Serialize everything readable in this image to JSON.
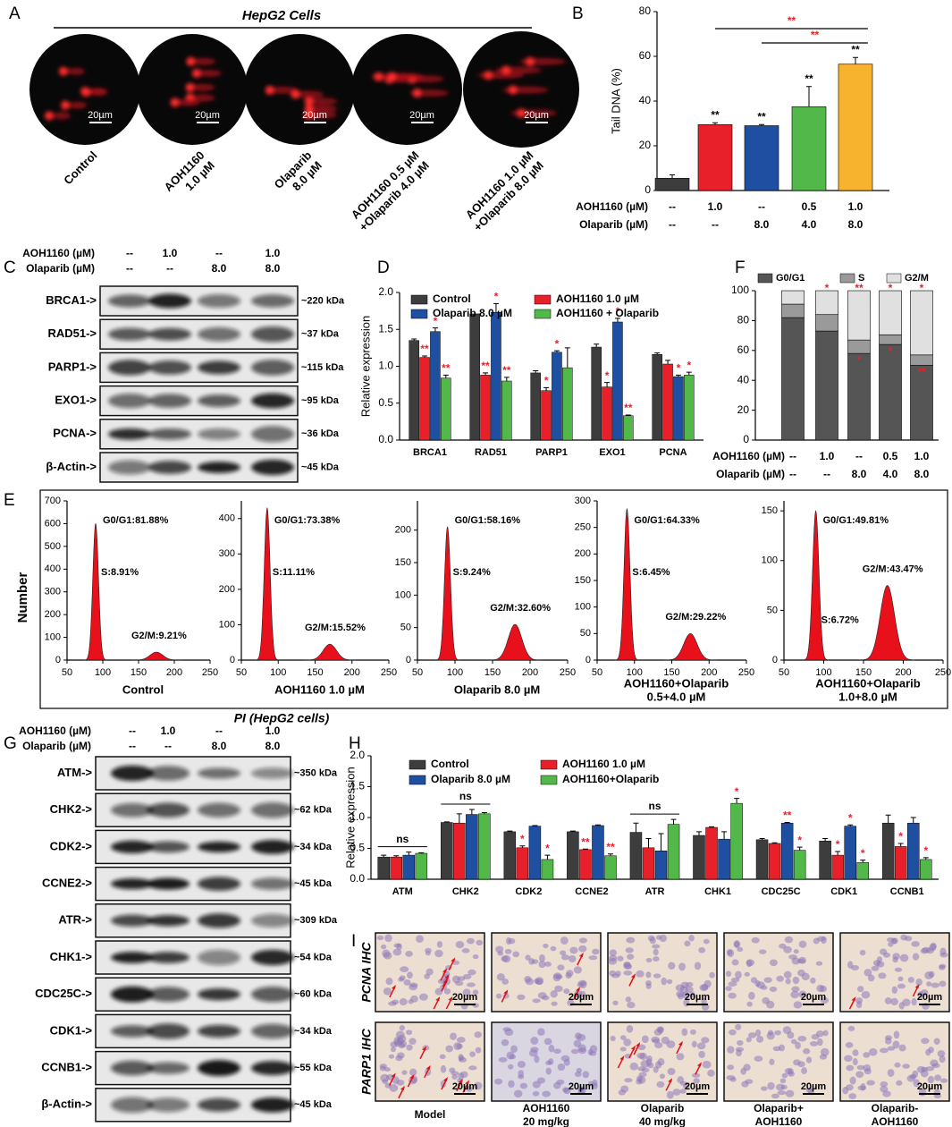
{
  "panel_labels": [
    "A",
    "B",
    "C",
    "D",
    "E",
    "F",
    "G",
    "H",
    "I"
  ],
  "comet": {
    "title": "HepG2 Cells",
    "scale": "20µm",
    "labels": [
      [
        "Control"
      ],
      [
        "AOH1160",
        "1.0 µM"
      ],
      [
        "Olaparib",
        "8.0 µM"
      ],
      [
        "AOH1160 0.5 µM",
        "+Olaparib 4.0 µM"
      ],
      [
        "AOH1160 1.0 µM",
        "+Olaparib 8.0 µM"
      ]
    ]
  },
  "blots_c": {
    "header": [
      {
        "label": "AOH1160 (µM)",
        "values": [
          "--",
          "1.0",
          "--",
          "1.0"
        ]
      },
      {
        "label": "Olaparib (µM)",
        "values": [
          "--",
          "--",
          "8.0",
          "8.0"
        ]
      }
    ],
    "rows": [
      {
        "name": "BRCA1->",
        "size": "~220 kDa"
      },
      {
        "name": "RAD51->",
        "size": "~37 kDa"
      },
      {
        "name": "PARP1->",
        "size": "~115 kDa"
      },
      {
        "name": "EXO1->",
        "size": "~95 kDa"
      },
      {
        "name": "PCNA->",
        "size": "~36 kDa"
      },
      {
        "name": "β-Actin->",
        "size": "~45 kDa"
      }
    ]
  },
  "blots_g": {
    "header": [
      {
        "label": "AOH1160 (µM)",
        "values": [
          "--",
          "1.0",
          "--",
          "1.0"
        ]
      },
      {
        "label": "Olaparib (µM)",
        "values": [
          "--",
          "--",
          "8.0",
          "8.0"
        ]
      }
    ],
    "rows": [
      {
        "name": "ATM->",
        "size": "~350 kDa"
      },
      {
        "name": "CHK2->",
        "size": "~62 kDa"
      },
      {
        "name": "CDK2->",
        "size": "~34 kDa"
      },
      {
        "name": "CCNE2->",
        "size": "~45 kDa"
      },
      {
        "name": "ATR->",
        "size": "~309 kDa"
      },
      {
        "name": "CHK1->",
        "size": "~54 kDa"
      },
      {
        "name": "CDC25C->",
        "size": "~60 kDa"
      },
      {
        "name": "CDK1->",
        "size": "~34 kDa"
      },
      {
        "name": "CCNB1->",
        "size": "~55 kDa"
      },
      {
        "name": "β-Actin->",
        "size": "~45 kDa"
      }
    ]
  },
  "flow": {
    "title": "PI (HepG2 cells)",
    "y_label": "Number"
  },
  "ihc": {
    "rows": [
      "PCNA IHC",
      "PARP1 IHC"
    ],
    "columns": [
      [
        "Model"
      ],
      [
        "AOH1160",
        "20 mg/kg"
      ],
      [
        "Olaparib",
        "40 mg/kg"
      ],
      [
        "Olaparib+",
        "AOH1160"
      ],
      [
        "Olaparib-",
        "AOH1160"
      ]
    ],
    "scale": "20µm"
  },
  "chart_data": [
    {
      "type": "bar",
      "y_label": "Tail DNA (%)",
      "ylim": [
        0,
        80
      ],
      "yticks": [
        0,
        20,
        40,
        60,
        80
      ],
      "values": [
        5.5,
        29.5,
        29,
        37.5,
        56.5
      ],
      "errors": [
        1.5,
        0.8,
        0.5,
        9,
        3
      ],
      "colors": [
        "#3d3d3d",
        "#e8202a",
        "#1f4fa0",
        "#52b84a",
        "#f7b22e"
      ],
      "stars": [
        null,
        "**",
        "**",
        "**",
        "**"
      ],
      "star_color": "#000000",
      "brackets": [
        {
          "from": 1,
          "to": 4,
          "label": "**",
          "color": "#e8202a"
        },
        {
          "from": 2,
          "to": 4,
          "label": "**",
          "color": "#e8202a"
        }
      ],
      "table": [
        {
          "label": "AOH1160 (µM)",
          "values": [
            "--",
            "1.0",
            "--",
            "0.5",
            "1.0"
          ]
        },
        {
          "label": "Olaparib (µM)",
          "values": [
            "--",
            "--",
            "8.0",
            "4.0",
            "8.0"
          ]
        }
      ]
    },
    {
      "type": "grouped_bar",
      "y_label": "Relative expression",
      "ylim": [
        0,
        2
      ],
      "yticks": [
        {
          "value": 0,
          "label": "0.0"
        },
        0.5,
        {
          "value": 1,
          "label": "1.0"
        },
        1.5,
        {
          "value": 2,
          "label": "2.0"
        }
      ],
      "categories": [
        "BRCA1",
        "RAD51",
        "PARP1",
        "EXO1",
        "PCNA"
      ],
      "star_color": "#e8202a",
      "series": [
        {
          "name": "Control",
          "color": "#3d3d3d",
          "values": [
            1.35,
            1.71,
            0.91,
            1.26,
            1.16
          ],
          "errors": [
            0.02,
            0,
            0.03,
            0.04,
            0.02
          ],
          "stars": [
            null,
            null,
            null,
            null,
            null
          ]
        },
        {
          "name": "AOH1160 1.0 µM",
          "color": "#e8202a",
          "values": [
            1.12,
            0.88,
            0.67,
            0.72,
            1.03
          ],
          "errors": [
            0.02,
            0.03,
            0.04,
            0.06,
            0.05
          ],
          "stars": [
            "**",
            "**",
            "*",
            "*",
            null
          ]
        },
        {
          "name": "Olaparib 8.0 µM",
          "color": "#1f4fa0",
          "values": [
            1.47,
            1.73,
            1.19,
            1.6,
            0.86
          ],
          "errors": [
            0.05,
            0.12,
            0.02,
            0.05,
            0.02
          ],
          "stars": [
            "*",
            "*",
            "*",
            "*",
            "*"
          ]
        },
        {
          "name": "AOH1160 + Olaparib",
          "color": "#52b84a",
          "values": [
            0.84,
            0.8,
            0.98,
            0.33,
            0.88
          ],
          "errors": [
            0.04,
            0.05,
            0.27,
            0.01,
            0.04
          ],
          "stars": [
            "**",
            "**",
            null,
            "**",
            "*"
          ]
        }
      ]
    },
    {
      "type": "stacked_bar",
      "ylim": [
        0,
        100
      ],
      "yticks": [
        0,
        20,
        40,
        60,
        80,
        100
      ],
      "star_color": "#e8202a",
      "series": [
        {
          "name": "G0/G1",
          "color": "#555555",
          "values": [
            82,
            73,
            58,
            64,
            50
          ],
          "stars": [
            null,
            null,
            "*",
            "*",
            "**"
          ]
        },
        {
          "name": "S",
          "color": "#9a9a9a",
          "values": [
            9,
            11,
            9,
            6.5,
            7
          ],
          "stars": [
            null,
            null,
            null,
            null,
            null
          ]
        },
        {
          "name": "G2/M",
          "color": "#e0e0e0",
          "values": [
            9,
            16,
            33,
            29.5,
            43
          ],
          "stars": [
            null,
            "*",
            "**",
            "*",
            "*"
          ]
        }
      ],
      "table": [
        {
          "label": "AOH1160 (µM)",
          "values": [
            "--",
            "1.0",
            "--",
            "0.5",
            "1.0"
          ]
        },
        {
          "label": "Olaparib (µM)",
          "values": [
            "--",
            "--",
            "8.0",
            "4.0",
            "8.0"
          ]
        }
      ]
    },
    {
      "type": "grouped_bar",
      "y_label": "Relative expression",
      "ylim": [
        0,
        2
      ],
      "yticks": [
        {
          "value": 0,
          "label": "0.0"
        },
        0.5,
        {
          "value": 1,
          "label": "1.0"
        },
        1.5,
        {
          "value": 2,
          "label": "2.0"
        }
      ],
      "categories": [
        "ATM",
        "CHK2",
        "CDK2",
        "CCNE2",
        "ATR",
        "CHK1",
        "CDC25C",
        "CDK1",
        "CCNB1"
      ],
      "star_color": "#e8202a",
      "series": [
        {
          "name": "Control",
          "color": "#3d3d3d",
          "values": [
            0.36,
            0.92,
            0.77,
            0.77,
            0.76,
            0.71,
            0.64,
            0.62,
            0.91
          ],
          "errors": [
            0.03,
            0.01,
            0.01,
            0.01,
            0.15,
            0.06,
            0.02,
            0.04,
            0.13
          ],
          "stars": [
            null,
            null,
            null,
            null,
            null,
            null,
            null,
            null,
            null
          ]
        },
        {
          "name": "AOH1160 1.0 µM",
          "color": "#e8202a",
          "values": [
            0.36,
            0.91,
            0.51,
            0.48,
            0.51,
            0.84,
            0.58,
            0.39,
            0.53
          ],
          "errors": [
            0.02,
            0.15,
            0.03,
            0.01,
            0.15,
            0.01,
            0.01,
            0.06,
            0.05
          ],
          "stars": [
            null,
            null,
            "*",
            "**",
            null,
            null,
            null,
            "*",
            "*"
          ]
        },
        {
          "name": "Olaparib 8.0 µM",
          "color": "#1f4fa0",
          "values": [
            0.39,
            1.05,
            0.86,
            0.87,
            0.46,
            0.65,
            0.91,
            0.86,
            0.91
          ],
          "errors": [
            0.05,
            0.08,
            0.01,
            0.01,
            0.28,
            0.12,
            0.01,
            0.02,
            0.09
          ],
          "stars": [
            null,
            null,
            null,
            null,
            null,
            null,
            "**",
            "*",
            null
          ]
        },
        {
          "name": "AOH1160+Olaparib",
          "color": "#52b84a",
          "values": [
            0.42,
            1.06,
            0.32,
            0.38,
            0.89,
            1.23,
            0.47,
            0.27,
            0.32
          ],
          "errors": [
            0.01,
            0.02,
            0.07,
            0.03,
            0.08,
            0.08,
            0.05,
            0.04,
            0.03
          ],
          "stars": [
            null,
            null,
            "*",
            "**",
            null,
            "*",
            "*",
            "*",
            "*"
          ]
        }
      ],
      "ns_brackets": [
        {
          "category": 0,
          "label": "ns"
        },
        {
          "category": 1,
          "label": "ns"
        },
        {
          "category": 4,
          "label": "ns"
        }
      ]
    },
    {
      "type": "flow",
      "xlim": [
        50,
        250
      ],
      "xticks": [
        50,
        100,
        150,
        200,
        250
      ],
      "ylim": [
        0,
        700
      ],
      "yticks": [
        0,
        100,
        200,
        300,
        400,
        500,
        600,
        700
      ],
      "peaks": [
        {
          "x": 90,
          "height": 600
        },
        {
          "x": 175,
          "height": 35
        }
      ],
      "annotations": [
        "G0/G1:81.88%",
        "S:8.91%",
        "G2/M:9.21%"
      ],
      "label": [
        "Control"
      ]
    },
    {
      "type": "flow",
      "xlim": [
        50,
        250
      ],
      "xticks": [
        50,
        100,
        150,
        200,
        250
      ],
      "ylim": [
        0,
        450
      ],
      "yticks": [
        0,
        100,
        200,
        300,
        400
      ],
      "peaks": [
        {
          "x": 85,
          "height": 430
        },
        {
          "x": 170,
          "height": 45
        }
      ],
      "annotations": [
        "G0/G1:73.38%",
        "S:11.11%",
        "G2/M:15.52%"
      ],
      "label": [
        "AOH1160 1.0 µM"
      ]
    },
    {
      "type": "flow",
      "xlim": [
        50,
        250
      ],
      "xticks": [
        50,
        100,
        150,
        200,
        250
      ],
      "ylim": [
        0,
        245
      ],
      "yticks": [
        0,
        50,
        100,
        150,
        200
      ],
      "peaks": [
        {
          "x": 90,
          "height": 205
        },
        {
          "x": 180,
          "height": 55
        }
      ],
      "annotations": [
        "G0/G1:58.16%",
        "S:9.24%",
        "G2/M:32.60%"
      ],
      "label": [
        "Olaparib 8.0 µM"
      ]
    },
    {
      "type": "flow",
      "xlim": [
        50,
        250
      ],
      "xticks": [
        50,
        100,
        150,
        200,
        250
      ],
      "ylim": [
        0,
        300
      ],
      "yticks": [
        0,
        50,
        100,
        150,
        200,
        250,
        300
      ],
      "peaks": [
        {
          "x": 90,
          "height": 285
        },
        {
          "x": 175,
          "height": 50
        }
      ],
      "annotations": [
        "G0/G1:64.33%",
        "S:6.45%",
        "G2/M:29.22%"
      ],
      "label": [
        "AOH1160+Olaparib",
        "0.5+4.0 µM"
      ]
    },
    {
      "type": "flow",
      "xlim": [
        50,
        250
      ],
      "xticks": [
        50,
        100,
        150,
        200,
        250
      ],
      "ylim": [
        0,
        160
      ],
      "yticks": [
        0,
        50,
        100,
        150
      ],
      "peaks": [
        {
          "x": 90,
          "height": 150
        },
        {
          "x": 180,
          "height": 75
        }
      ],
      "annotations": [
        "G0/G1:49.81%",
        "S:6.72%",
        "G2/M:43.47%"
      ],
      "label": [
        "AOH1160+Olaparib",
        "1.0+8.0 µM"
      ]
    }
  ]
}
